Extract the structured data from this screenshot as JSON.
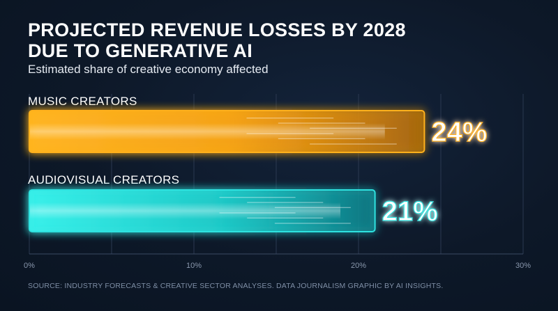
{
  "header": {
    "title_line1": "PROJECTED REVENUE LOSSES BY 2028",
    "title_line2": "DUE TO GENERATIVE AI",
    "subtitle": "Estimated share of creative economy affected"
  },
  "footer": {
    "source": "SOURCE: INDUSTRY FORECASTS & CREATIVE SECTOR ANALYSES. DATA JOURNALISM GRAPHIC BY AI INSIGHTS."
  },
  "colors": {
    "music": "#ffb11f",
    "audiovisual": "#2fe3e0",
    "background": "#0e1a2b",
    "grid": "#2a3850"
  },
  "chart_data": {
    "type": "bar",
    "orientation": "horizontal",
    "title": "PROJECTED REVENUE LOSSES BY 2028 DUE TO GENERATIVE AI",
    "subtitle": "Estimated share of creative economy affected",
    "categories": [
      "MUSIC CREATORS",
      "AUDIOVISUAL CREATORS"
    ],
    "values": [
      24,
      21
    ],
    "data_labels": [
      "24%",
      "21%"
    ],
    "xlim": [
      0,
      30
    ],
    "x_ticks": [
      0,
      10,
      20,
      30
    ],
    "x_tick_labels": [
      "0%",
      "10%",
      "20%",
      "30%"
    ],
    "grid": true,
    "unit": "%"
  }
}
